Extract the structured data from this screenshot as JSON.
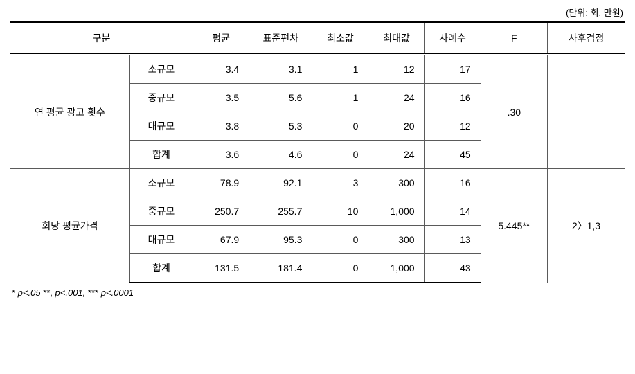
{
  "unit_text": "(단위: 회, 만원)",
  "headers": {
    "gubun": "구분",
    "avg": "평균",
    "std": "표준편차",
    "min": "최소값",
    "max": "최대값",
    "n": "사례수",
    "f": "F",
    "post": "사후검정"
  },
  "sections": [
    {
      "label": "연 평균 광고 횟수",
      "f_value": ".30",
      "post_hoc": "",
      "rows": [
        {
          "sub": "소규모",
          "avg": "3.4",
          "std": "3.1",
          "min": "1",
          "max": "12",
          "n": "17"
        },
        {
          "sub": "중규모",
          "avg": "3.5",
          "std": "5.6",
          "min": "1",
          "max": "24",
          "n": "16"
        },
        {
          "sub": "대규모",
          "avg": "3.8",
          "std": "5.3",
          "min": "0",
          "max": "20",
          "n": "12"
        },
        {
          "sub": "합계",
          "avg": "3.6",
          "std": "4.6",
          "min": "0",
          "max": "24",
          "n": "45"
        }
      ]
    },
    {
      "label": "회당 평균가격",
      "f_value": "5.445**",
      "post_hoc": "2〉1,3",
      "rows": [
        {
          "sub": "소규모",
          "avg": "78.9",
          "std": "92.1",
          "min": "3",
          "max": "300",
          "n": "16"
        },
        {
          "sub": "중규모",
          "avg": "250.7",
          "std": "255.7",
          "min": "10",
          "max": "1,000",
          "n": "14"
        },
        {
          "sub": "대규모",
          "avg": "67.9",
          "std": "95.3",
          "min": "0",
          "max": "300",
          "n": "13"
        },
        {
          "sub": "합계",
          "avg": "131.5",
          "std": "181.4",
          "min": "0",
          "max": "1,000",
          "n": "43"
        }
      ]
    }
  ],
  "footnote_parts": {
    "star1": "*",
    "p1": " p<.05 ",
    "star2": "**,",
    "p2": " p<.001, ",
    "star3": "***",
    "p3": " p<.0001"
  }
}
